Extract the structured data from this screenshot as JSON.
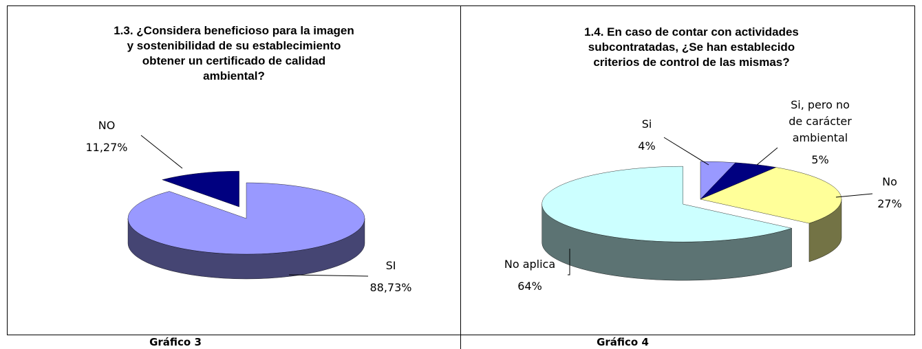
{
  "chart_data": [
    {
      "type": "pie",
      "title": "1.3. ¿Considera beneficioso para la imagen\ny sostenibilidad de su establecimiento\nobtener un certificado de calidad\nambiental?",
      "categories": [
        "SI",
        "NO"
      ],
      "values": [
        88.73,
        11.27
      ],
      "value_labels": [
        "88,73%",
        "11,27%"
      ],
      "colors": [
        "#9999ff",
        "#000080"
      ],
      "explode": [
        false,
        true
      ]
    },
    {
      "type": "pie",
      "title": "1.4. En caso de contar con actividades\nsubcontratadas, ¿Se han establecido\ncriterios de control de las mismas?",
      "categories": [
        "Si",
        "Si, pero no\nde carácter\nambiental",
        "No",
        "No aplica"
      ],
      "values": [
        4,
        5,
        27,
        64
      ],
      "value_labels": [
        "4%",
        "5%",
        "27%",
        "64%"
      ],
      "colors": [
        "#9999ff",
        "#000080",
        "#ffff99",
        "#ccffff"
      ],
      "explode": [
        false,
        false,
        false,
        true
      ]
    }
  ],
  "captions": [
    "Gráfico 3",
    "Gráfico 4"
  ]
}
